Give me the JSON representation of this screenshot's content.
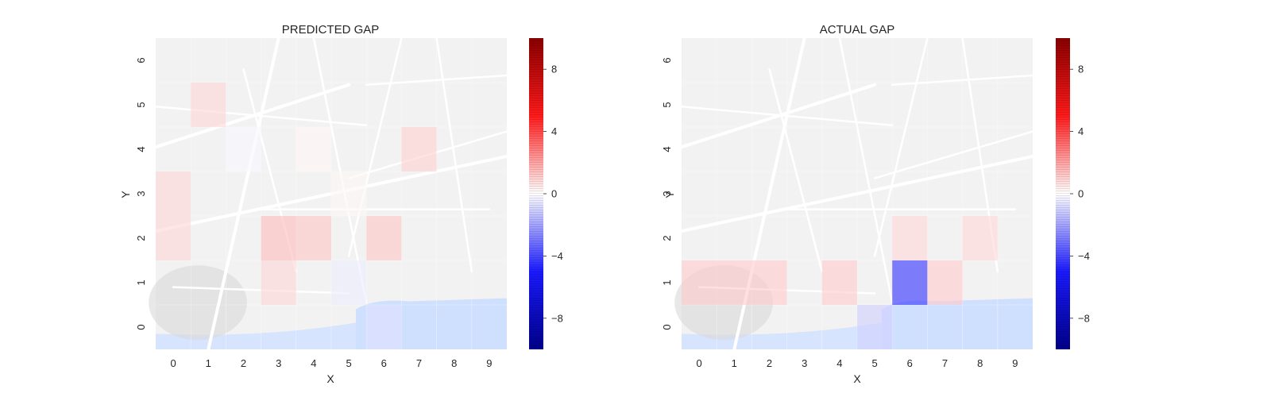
{
  "figure": {
    "background": "#ffffff"
  },
  "colorbar": {
    "ticks": [
      8,
      4,
      0,
      -4,
      -8
    ],
    "vmin": -10,
    "vmax": 10,
    "colors": {
      "neg": "#0000ff",
      "mid": "#ffffff",
      "pos": "#ff0000"
    }
  },
  "map": {
    "water_color": "#cfe0ff",
    "land_color": "#f2f2f2",
    "road_color": "#ffffff"
  },
  "chart_data": [
    {
      "type": "heatmap",
      "title": "PREDICTED GAP",
      "xlabel": "X",
      "ylabel": "Y",
      "x_ticks": [
        "0",
        "1",
        "2",
        "3",
        "4",
        "5",
        "6",
        "7",
        "8",
        "9"
      ],
      "y_ticks": [
        "0",
        "1",
        "2",
        "3",
        "4",
        "5",
        "6"
      ],
      "vmin": -10,
      "vmax": 10,
      "cells": [
        {
          "x": 1,
          "y": 5,
          "v": 1.6
        },
        {
          "x": 7,
          "y": 4,
          "v": 1.8
        },
        {
          "x": 2,
          "y": 4,
          "v": -0.3
        },
        {
          "x": 4,
          "y": 4,
          "v": 0.4
        },
        {
          "x": 0,
          "y": 3,
          "v": 1.6
        },
        {
          "x": 0,
          "y": 2,
          "v": 1.6
        },
        {
          "x": 3,
          "y": 2,
          "v": 2.6
        },
        {
          "x": 4,
          "y": 2,
          "v": 2.2
        },
        {
          "x": 6,
          "y": 2,
          "v": 2.2
        },
        {
          "x": 5,
          "y": 3,
          "v": 0.3
        },
        {
          "x": 3,
          "y": 1,
          "v": 1.6
        },
        {
          "x": 5,
          "y": 1,
          "v": -0.7
        },
        {
          "x": 6,
          "y": 0,
          "v": -1.2
        }
      ]
    },
    {
      "type": "heatmap",
      "title": "ACTUAL GAP",
      "xlabel": "X",
      "ylabel": "Y",
      "x_ticks": [
        "0",
        "1",
        "2",
        "3",
        "4",
        "5",
        "6",
        "7",
        "8",
        "9"
      ],
      "y_ticks": [
        "0",
        "1",
        "2",
        "3",
        "4",
        "5",
        "6"
      ],
      "vmin": -10,
      "vmax": 10,
      "cells": [
        {
          "x": 6,
          "y": 2,
          "v": 1.5
        },
        {
          "x": 8,
          "y": 2,
          "v": 1.5
        },
        {
          "x": 0,
          "y": 1,
          "v": 2.0
        },
        {
          "x": 1,
          "y": 1,
          "v": 2.0
        },
        {
          "x": 2,
          "y": 1,
          "v": 2.0
        },
        {
          "x": 4,
          "y": 1,
          "v": 2.0
        },
        {
          "x": 6,
          "y": 1,
          "v": -8.0
        },
        {
          "x": 7,
          "y": 1,
          "v": 2.0
        },
        {
          "x": 5,
          "y": 0,
          "v": -1.8
        }
      ]
    }
  ]
}
